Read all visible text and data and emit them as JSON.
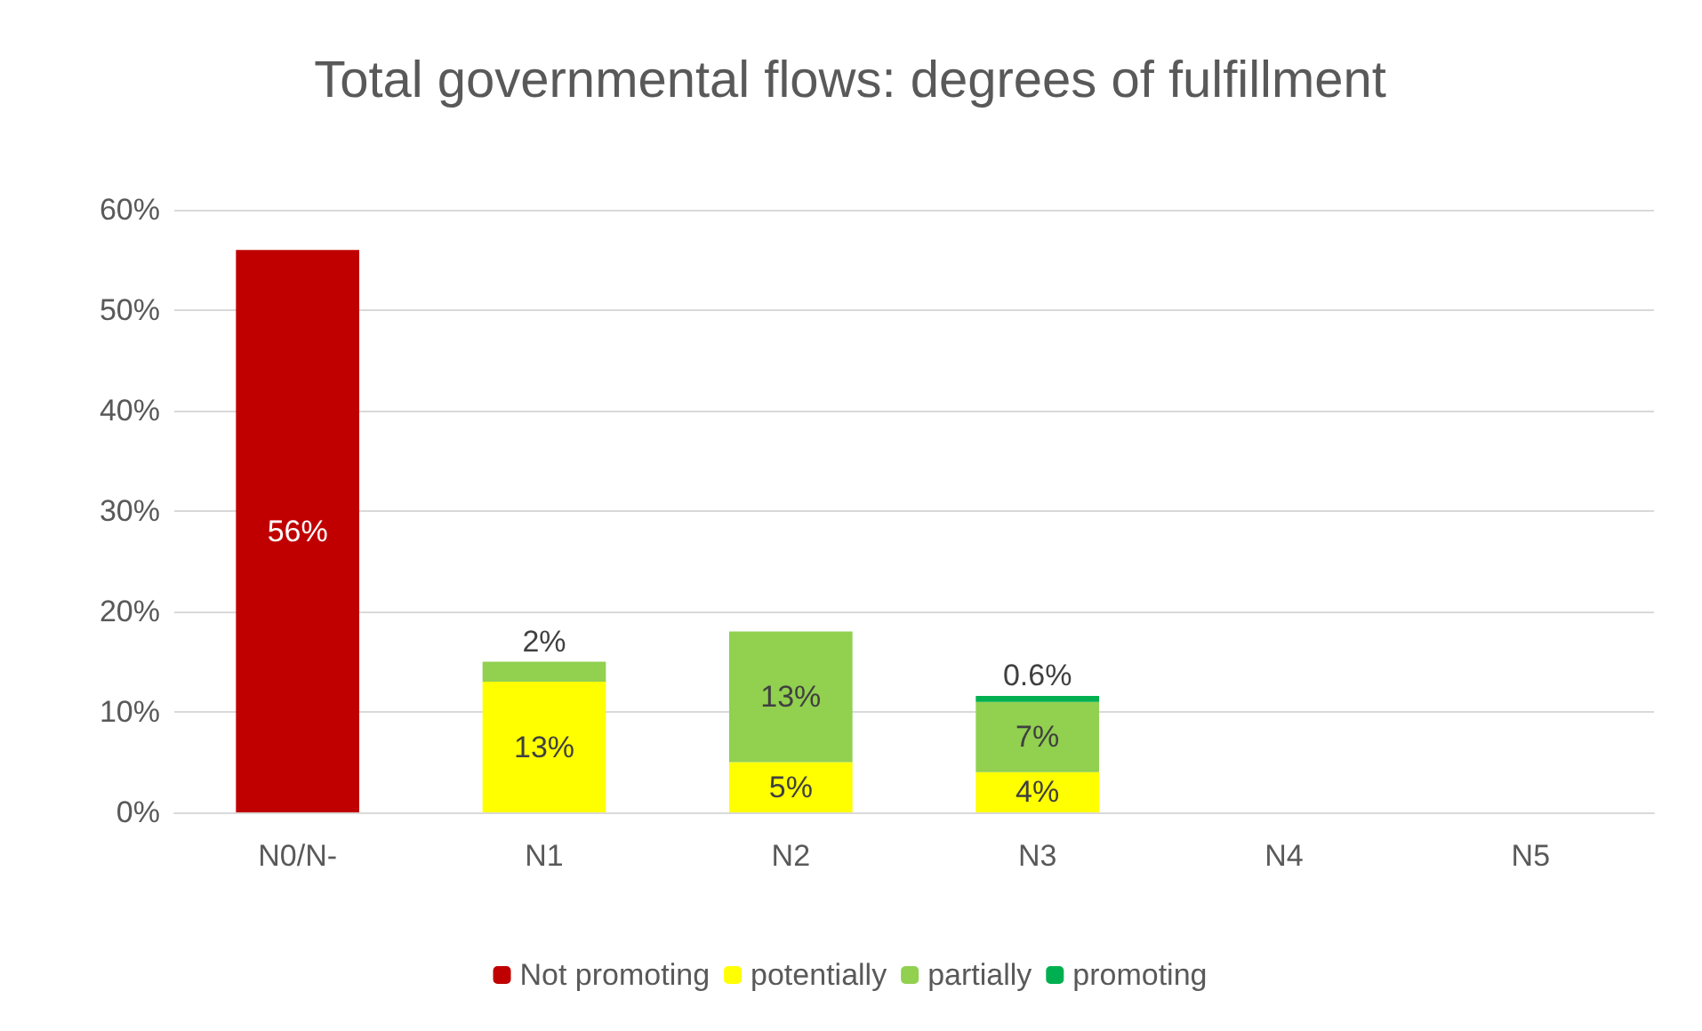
{
  "chart_data": {
    "type": "bar",
    "title": "Total governmental flows: degrees of fulfillment",
    "categories": [
      "N0/N-",
      "N1",
      "N2",
      "N3",
      "N4",
      "N5"
    ],
    "stacked": true,
    "series": [
      {
        "name": "Not promoting",
        "color": "#c00000",
        "values": [
          56,
          null,
          null,
          null,
          null,
          null
        ],
        "value_labels": [
          "56%",
          null,
          null,
          null,
          null,
          null
        ]
      },
      {
        "name": "potentially",
        "color": "#ffff00",
        "values": [
          null,
          13,
          5,
          4,
          null,
          null
        ],
        "value_labels": [
          null,
          "13%",
          "5%",
          "4%",
          null,
          null
        ]
      },
      {
        "name": "partially",
        "color": "#92d050",
        "values": [
          null,
          2,
          13,
          7,
          null,
          null
        ],
        "value_labels": [
          null,
          "2%",
          "13%",
          "7%",
          null,
          null
        ]
      },
      {
        "name": "promoting",
        "color": "#00b050",
        "values": [
          null,
          null,
          null,
          0.6,
          null,
          null
        ],
        "value_labels": [
          null,
          null,
          null,
          "0.6%",
          null,
          null
        ]
      }
    ],
    "ylim": [
      0,
      60
    ],
    "yticks": [
      {
        "value": 0,
        "label": "0%"
      },
      {
        "value": 10,
        "label": "10%"
      },
      {
        "value": 20,
        "label": "20%"
      },
      {
        "value": 30,
        "label": "30%"
      },
      {
        "value": 40,
        "label": "40%"
      },
      {
        "value": 50,
        "label": "50%"
      },
      {
        "value": 60,
        "label": "60%"
      }
    ],
    "grid": "y",
    "legend": "bottom"
  }
}
